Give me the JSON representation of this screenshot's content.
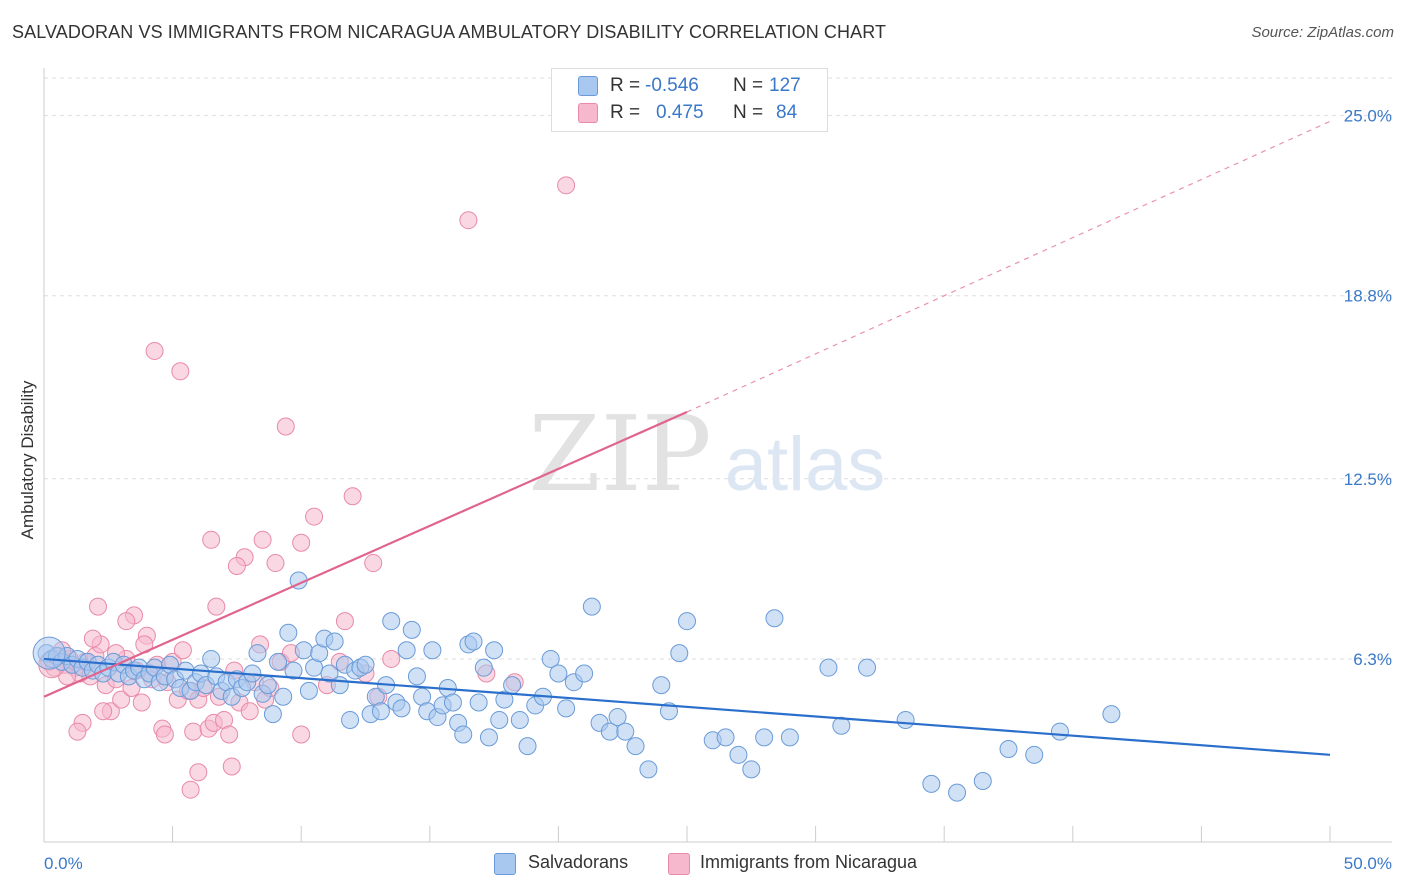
{
  "title": "SALVADORAN VS IMMIGRANTS FROM NICARAGUA AMBULATORY DISABILITY CORRELATION CHART",
  "source": "Source: ZipAtlas.com",
  "watermark": {
    "zip": "ZIP",
    "atlas": "atlas"
  },
  "legend_top": {
    "rows": [
      {
        "r_label": "R =",
        "r_value": "-0.546",
        "n_label": "N =",
        "n_value": "127"
      },
      {
        "r_label": "R =",
        "r_value": "0.475",
        "n_label": "N =",
        "n_value": "84"
      }
    ]
  },
  "legend_bottom": {
    "series1": "Salvadorans",
    "series2": "Immigrants from Nicaragua"
  },
  "colors": {
    "blue_fill": "#a9c8ef",
    "blue_stroke": "#6a9bd8",
    "blue_line": "#2b6fcc",
    "pink_fill": "#f6b8cc",
    "pink_stroke": "#e88aa8",
    "pink_line": "#e0648e",
    "axis_text": "#3a78c9",
    "grid": "#dddddd"
  },
  "chart_data": {
    "type": "scatter",
    "title": "SALVADORAN VS IMMIGRANTS FROM NICARAGUA AMBULATORY DISABILITY CORRELATION CHART",
    "xlabel": "",
    "ylabel": "Ambulatory Disability",
    "xlim": [
      0,
      50
    ],
    "ylim": [
      0,
      26.5
    ],
    "x_tick_labels": [
      {
        "value": 0,
        "label": "0.0%"
      },
      {
        "value": 50,
        "label": "50.0%"
      }
    ],
    "y_tick_labels": [
      {
        "value": 6.3,
        "label": "6.3%"
      },
      {
        "value": 12.5,
        "label": "12.5%"
      },
      {
        "value": 18.8,
        "label": "18.8%"
      },
      {
        "value": 25.0,
        "label": "25.0%"
      }
    ],
    "grid": true,
    "legend_position": "top-center",
    "series": [
      {
        "name": "Salvadorans",
        "R": -0.546,
        "N": 127,
        "trend": {
          "x0": 0,
          "y0": 6.3,
          "x1": 50,
          "y1": 3.0
        },
        "points": [
          [
            0.1,
            6.5
          ],
          [
            0.3,
            6.3
          ],
          [
            0.5,
            6.4
          ],
          [
            0.7,
            6.2
          ],
          [
            0.9,
            6.4
          ],
          [
            1.1,
            6.1
          ],
          [
            1.3,
            6.3
          ],
          [
            1.5,
            6.0
          ],
          [
            1.7,
            6.2
          ],
          [
            1.9,
            5.9
          ],
          [
            2.1,
            6.1
          ],
          [
            2.3,
            5.8
          ],
          [
            2.5,
            6.0
          ],
          [
            2.7,
            6.2
          ],
          [
            2.9,
            5.8
          ],
          [
            3.1,
            6.1
          ],
          [
            3.3,
            5.7
          ],
          [
            3.5,
            5.9
          ],
          [
            3.7,
            6.0
          ],
          [
            3.9,
            5.6
          ],
          [
            4.1,
            5.8
          ],
          [
            4.3,
            6.0
          ],
          [
            4.5,
            5.5
          ],
          [
            4.7,
            5.7
          ],
          [
            4.9,
            6.1
          ],
          [
            5.1,
            5.6
          ],
          [
            5.3,
            5.3
          ],
          [
            5.5,
            5.9
          ],
          [
            5.7,
            5.2
          ],
          [
            5.9,
            5.5
          ],
          [
            6.1,
            5.8
          ],
          [
            6.3,
            5.4
          ],
          [
            6.5,
            6.3
          ],
          [
            6.7,
            5.7
          ],
          [
            6.9,
            5.2
          ],
          [
            7.1,
            5.5
          ],
          [
            7.3,
            5.0
          ],
          [
            7.5,
            5.6
          ],
          [
            7.7,
            5.3
          ],
          [
            7.9,
            5.5
          ],
          [
            8.1,
            5.8
          ],
          [
            8.3,
            6.5
          ],
          [
            8.5,
            5.1
          ],
          [
            8.7,
            5.4
          ],
          [
            8.9,
            4.4
          ],
          [
            9.1,
            6.2
          ],
          [
            9.3,
            5.0
          ],
          [
            9.5,
            7.2
          ],
          [
            9.7,
            5.9
          ],
          [
            9.9,
            9.0
          ],
          [
            10.1,
            6.6
          ],
          [
            10.3,
            5.2
          ],
          [
            10.5,
            6.0
          ],
          [
            10.7,
            6.5
          ],
          [
            10.9,
            7.0
          ],
          [
            11.1,
            5.8
          ],
          [
            11.3,
            6.9
          ],
          [
            11.5,
            5.4
          ],
          [
            11.7,
            6.1
          ],
          [
            11.9,
            4.2
          ],
          [
            12.1,
            5.9
          ],
          [
            12.3,
            6.0
          ],
          [
            12.5,
            6.1
          ],
          [
            12.7,
            4.4
          ],
          [
            12.9,
            5.0
          ],
          [
            13.1,
            4.5
          ],
          [
            13.3,
            5.4
          ],
          [
            13.5,
            7.6
          ],
          [
            13.7,
            4.8
          ],
          [
            13.9,
            4.6
          ],
          [
            14.1,
            6.6
          ],
          [
            14.3,
            7.3
          ],
          [
            14.5,
            5.7
          ],
          [
            14.7,
            5.0
          ],
          [
            14.9,
            4.5
          ],
          [
            15.1,
            6.6
          ],
          [
            15.3,
            4.3
          ],
          [
            15.5,
            4.7
          ],
          [
            15.7,
            5.3
          ],
          [
            15.9,
            4.8
          ],
          [
            16.1,
            4.1
          ],
          [
            16.3,
            3.7
          ],
          [
            16.5,
            6.8
          ],
          [
            16.7,
            6.9
          ],
          [
            16.9,
            4.8
          ],
          [
            17.1,
            6.0
          ],
          [
            17.3,
            3.6
          ],
          [
            17.5,
            6.6
          ],
          [
            17.7,
            4.2
          ],
          [
            17.9,
            4.9
          ],
          [
            18.2,
            5.4
          ],
          [
            18.5,
            4.2
          ],
          [
            18.8,
            3.3
          ],
          [
            19.1,
            4.7
          ],
          [
            19.4,
            5.0
          ],
          [
            19.7,
            6.3
          ],
          [
            20.0,
            5.8
          ],
          [
            20.3,
            4.6
          ],
          [
            20.6,
            5.5
          ],
          [
            21.0,
            5.8
          ],
          [
            21.3,
            8.1
          ],
          [
            21.6,
            4.1
          ],
          [
            22.0,
            3.8
          ],
          [
            22.3,
            4.3
          ],
          [
            22.6,
            3.8
          ],
          [
            23.0,
            3.3
          ],
          [
            23.5,
            2.5
          ],
          [
            24.0,
            5.4
          ],
          [
            24.3,
            4.5
          ],
          [
            24.7,
            6.5
          ],
          [
            25.0,
            7.6
          ],
          [
            26.0,
            3.5
          ],
          [
            26.5,
            3.6
          ],
          [
            27.0,
            3.0
          ],
          [
            27.5,
            2.5
          ],
          [
            28.0,
            3.6
          ],
          [
            28.4,
            7.7
          ],
          [
            29.0,
            3.6
          ],
          [
            30.5,
            6.0
          ],
          [
            31.0,
            4.0
          ],
          [
            32.0,
            6.0
          ],
          [
            33.5,
            4.2
          ],
          [
            34.5,
            2.0
          ],
          [
            35.5,
            1.7
          ],
          [
            36.5,
            2.1
          ],
          [
            37.5,
            3.2
          ],
          [
            38.5,
            3.0
          ],
          [
            39.5,
            3.8
          ],
          [
            41.5,
            4.4
          ]
        ]
      },
      {
        "name": "Immigrants from Nicaragua",
        "R": 0.475,
        "N": 84,
        "trend": {
          "x0": 0,
          "y0": 5.0,
          "x1": 25,
          "y1": 14.8,
          "dash_to": {
            "x": 50,
            "y": 24.8
          }
        },
        "points": [
          [
            0.2,
            6.2
          ],
          [
            0.4,
            6.0
          ],
          [
            0.6,
            6.4
          ],
          [
            0.8,
            6.1
          ],
          [
            1.0,
            6.3
          ],
          [
            1.2,
            6.0
          ],
          [
            1.4,
            5.8
          ],
          [
            1.6,
            6.2
          ],
          [
            1.8,
            5.7
          ],
          [
            2.0,
            6.4
          ],
          [
            2.2,
            6.8
          ],
          [
            2.4,
            5.4
          ],
          [
            2.6,
            4.5
          ],
          [
            2.8,
            5.6
          ],
          [
            3.0,
            4.9
          ],
          [
            3.2,
            6.3
          ],
          [
            3.4,
            5.3
          ],
          [
            3.6,
            5.9
          ],
          [
            3.8,
            4.8
          ],
          [
            4.0,
            7.1
          ],
          [
            4.2,
            5.6
          ],
          [
            4.4,
            6.1
          ],
          [
            4.6,
            3.9
          ],
          [
            4.8,
            5.5
          ],
          [
            5.0,
            6.2
          ],
          [
            5.2,
            4.9
          ],
          [
            5.4,
            6.6
          ],
          [
            5.6,
            5.2
          ],
          [
            5.8,
            3.8
          ],
          [
            6.0,
            4.9
          ],
          [
            6.2,
            5.3
          ],
          [
            6.4,
            3.9
          ],
          [
            6.6,
            4.1
          ],
          [
            6.8,
            5.0
          ],
          [
            7.0,
            4.2
          ],
          [
            7.2,
            3.7
          ],
          [
            7.4,
            5.9
          ],
          [
            7.6,
            4.8
          ],
          [
            7.8,
            9.8
          ],
          [
            8.0,
            4.5
          ],
          [
            8.2,
            5.5
          ],
          [
            8.4,
            6.8
          ],
          [
            8.6,
            4.9
          ],
          [
            8.8,
            5.3
          ],
          [
            9.0,
            9.6
          ],
          [
            9.2,
            6.2
          ],
          [
            9.4,
            14.3
          ],
          [
            9.6,
            6.5
          ],
          [
            10.0,
            3.7
          ],
          [
            10.5,
            11.2
          ],
          [
            11.0,
            5.4
          ],
          [
            11.5,
            6.2
          ],
          [
            12.0,
            11.9
          ],
          [
            12.5,
            5.8
          ],
          [
            13.0,
            5.0
          ],
          [
            13.5,
            6.3
          ],
          [
            0.7,
            6.6
          ],
          [
            1.5,
            4.1
          ],
          [
            2.1,
            8.1
          ],
          [
            3.5,
            7.8
          ],
          [
            4.3,
            16.9
          ],
          [
            5.3,
            16.2
          ],
          [
            6.5,
            10.4
          ],
          [
            7.5,
            9.5
          ],
          [
            6.7,
            8.1
          ],
          [
            3.2,
            7.6
          ],
          [
            1.3,
            3.8
          ],
          [
            2.3,
            4.5
          ],
          [
            6.0,
            2.4
          ],
          [
            7.3,
            2.6
          ],
          [
            8.5,
            10.4
          ],
          [
            10.0,
            10.3
          ],
          [
            11.7,
            7.6
          ],
          [
            12.8,
            9.6
          ],
          [
            17.2,
            5.8
          ],
          [
            18.3,
            5.5
          ],
          [
            16.5,
            21.4
          ],
          [
            20.3,
            22.6
          ],
          [
            4.7,
            3.7
          ],
          [
            5.7,
            1.8
          ],
          [
            2.8,
            6.5
          ],
          [
            3.9,
            6.8
          ],
          [
            1.9,
            7.0
          ],
          [
            0.9,
            5.7
          ]
        ]
      }
    ]
  }
}
